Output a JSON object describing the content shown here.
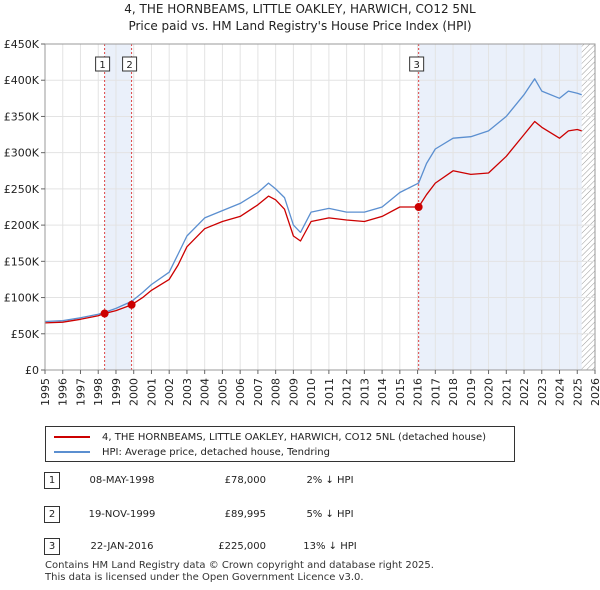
{
  "title_line1": "4, THE HORNBEAMS, LITTLE OAKLEY, HARWICH, CO12 5NL",
  "title_line2": "Price paid vs. HM Land Registry's House Price Index (HPI)",
  "chart_data": {
    "type": "line",
    "title": "4, THE HORNBEAMS, LITTLE OAKLEY, HARWICH, CO12 5NL — Price paid vs. HM Land Registry's House Price Index (HPI)",
    "xlabel": "",
    "ylabel": "",
    "xlim": [
      1995,
      2026
    ],
    "ylim": [
      0,
      450000
    ],
    "grid": true,
    "x_ticks": [
      "1995",
      "1996",
      "1997",
      "1998",
      "1999",
      "2000",
      "2001",
      "2002",
      "2003",
      "2004",
      "2005",
      "2006",
      "2007",
      "2008",
      "2009",
      "2010",
      "2011",
      "2012",
      "2013",
      "2014",
      "2015",
      "2016",
      "2017",
      "2018",
      "2019",
      "2020",
      "2021",
      "2022",
      "2023",
      "2024",
      "2025",
      "2026"
    ],
    "y_ticks": [
      "£0",
      "£50K",
      "£100K",
      "£150K",
      "£200K",
      "£250K",
      "£300K",
      "£350K",
      "£400K",
      "£450K"
    ],
    "series": [
      {
        "name": "4, THE HORNBEAMS, LITTLE OAKLEY, HARWICH, CO12 5NL (detached house)",
        "color": "#cc0000",
        "x": [
          1995.0,
          1996.0,
          1997.0,
          1998.0,
          1998.36,
          1999.0,
          1999.88,
          2000.5,
          2001.0,
          2002.0,
          2002.5,
          2003.0,
          2004.0,
          2005.0,
          2006.0,
          2007.0,
          2007.6,
          2008.0,
          2008.5,
          2009.0,
          2009.4,
          2010.0,
          2011.0,
          2012.0,
          2013.0,
          2014.0,
          2015.0,
          2016.06,
          2016.5,
          2017.0,
          2018.0,
          2019.0,
          2020.0,
          2021.0,
          2022.0,
          2022.6,
          2023.0,
          2024.0,
          2024.5,
          2025.0,
          2025.25
        ],
        "y": [
          65000,
          66000,
          70000,
          75000,
          78000,
          82000,
          89995,
          100000,
          110000,
          125000,
          145000,
          170000,
          195000,
          205000,
          212000,
          228000,
          240000,
          235000,
          222000,
          185000,
          178000,
          205000,
          210000,
          207000,
          205000,
          212000,
          225000,
          225000,
          242000,
          258000,
          275000,
          270000,
          272000,
          295000,
          325000,
          343000,
          335000,
          320000,
          330000,
          332000,
          330000
        ]
      },
      {
        "name": "HPI: Average price, detached house, Tendring",
        "color": "#5b8fd0",
        "x": [
          1995.0,
          1996.0,
          1997.0,
          1998.0,
          1998.36,
          1999.0,
          1999.88,
          2000.5,
          2001.0,
          2002.0,
          2002.5,
          2003.0,
          2004.0,
          2005.0,
          2006.0,
          2007.0,
          2007.6,
          2008.0,
          2008.5,
          2009.0,
          2009.4,
          2010.0,
          2011.0,
          2012.0,
          2013.0,
          2014.0,
          2015.0,
          2016.06,
          2016.5,
          2017.0,
          2018.0,
          2019.0,
          2020.0,
          2021.0,
          2022.0,
          2022.6,
          2023.0,
          2024.0,
          2024.5,
          2025.0,
          2025.25
        ],
        "y": [
          67000,
          68000,
          72000,
          77000,
          79500,
          85000,
          94700,
          107000,
          118000,
          135000,
          160000,
          185000,
          210000,
          220000,
          230000,
          245000,
          258000,
          250000,
          238000,
          200000,
          190000,
          218000,
          223000,
          218000,
          218000,
          225000,
          245000,
          258000,
          285000,
          305000,
          320000,
          322000,
          330000,
          350000,
          380000,
          402000,
          385000,
          375000,
          385000,
          382000,
          380000
        ]
      }
    ],
    "sale_points": [
      {
        "label": "1",
        "x": 1998.36,
        "y": 78000
      },
      {
        "label": "2",
        "x": 1999.88,
        "y": 89995
      },
      {
        "label": "3",
        "x": 2016.06,
        "y": 225000
      }
    ],
    "shaded_ranges": [
      [
        1998.36,
        1999.88
      ],
      [
        2016.06,
        2025.25
      ]
    ],
    "hatch_from": 2025.25
  },
  "legend": {
    "property_label": "4, THE HORNBEAMS, LITTLE OAKLEY, HARWICH, CO12 5NL (detached house)",
    "hpi_label": "HPI: Average price, detached house, Tendring",
    "property_color": "#cc0000",
    "hpi_color": "#5b8fd0"
  },
  "sales": [
    {
      "num": "1",
      "date": "08-MAY-1998",
      "price": "£78,000",
      "hpi": "2% ↓ HPI"
    },
    {
      "num": "2",
      "date": "19-NOV-1999",
      "price": "£89,995",
      "hpi": "5% ↓ HPI"
    },
    {
      "num": "3",
      "date": "22-JAN-2016",
      "price": "£225,000",
      "hpi": "13% ↓ HPI"
    }
  ],
  "footer_line1": "Contains HM Land Registry data © Crown copyright and database right 2025.",
  "footer_line2": "This data is licensed under the Open Government Licence v3.0."
}
